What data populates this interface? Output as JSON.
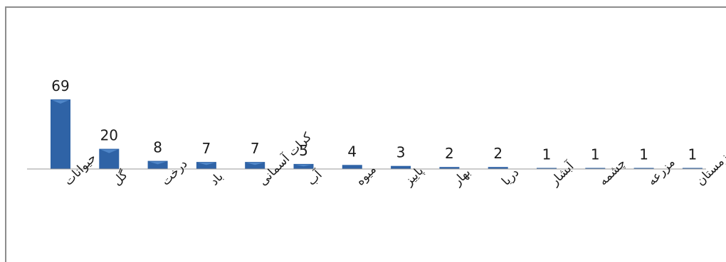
{
  "chart_data": {
    "type": "bar",
    "categories": [
      "حیوانات",
      "گل",
      "درخت",
      "باد",
      "کرات آسمانی",
      "آب",
      "میوه",
      "پاییز",
      "بهار",
      "دریا",
      "آبشار",
      "چشمه",
      "مزرعه",
      "زمستان"
    ],
    "values": [
      69,
      20,
      8,
      7,
      7,
      5,
      4,
      3,
      2,
      2,
      1,
      1,
      1,
      1
    ],
    "title": "",
    "xlabel": "",
    "ylabel": "",
    "ylim": [
      0,
      69
    ],
    "grid": false,
    "data_labels": true,
    "bar_color": "#2f63a6",
    "bar_highlight": "#4f86c8",
    "axis_color": "#9a9a9a"
  }
}
